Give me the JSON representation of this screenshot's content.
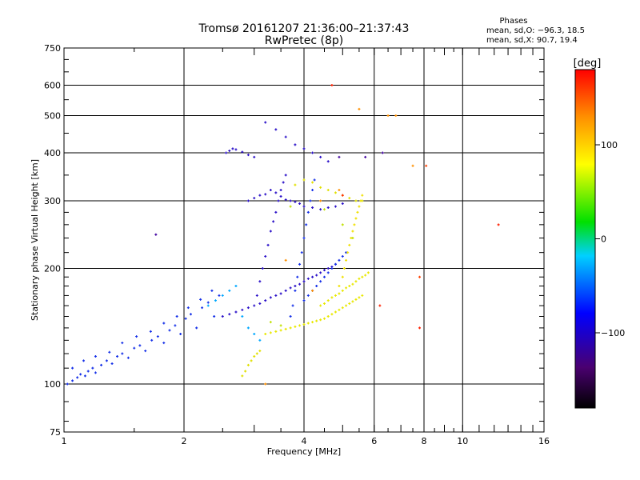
{
  "chart_data": {
    "type": "scatter",
    "title": "Tromsø 20161207 21:36:00–21:37:43",
    "subtitle": "RwPretec (8p)",
    "xlabel": "Frequency [MHz]",
    "ylabel": "Stationary phase Virtual Height [km]",
    "x_scale": "log",
    "y_scale": "log",
    "xlim": [
      1,
      16
    ],
    "ylim": [
      75,
      750
    ],
    "x_ticks": [
      {
        "value": 1,
        "label": "1"
      },
      {
        "value": 2,
        "label": "2"
      },
      {
        "value": 4,
        "label": "4"
      },
      {
        "value": 6,
        "label": "6"
      },
      {
        "value": 8,
        "label": "8"
      },
      {
        "value": 10,
        "label": "10"
      },
      {
        "value": 16,
        "label": "16"
      }
    ],
    "x_major_grid": [
      2,
      4,
      6,
      8,
      10
    ],
    "y_ticks": [
      {
        "value": 75,
        "label": "75"
      },
      {
        "value": 100,
        "label": "100"
      },
      {
        "value": 200,
        "label": "200"
      },
      {
        "value": 300,
        "label": "300"
      },
      {
        "value": 400,
        "label": "400"
      },
      {
        "value": 500,
        "label": "500"
      },
      {
        "value": 600,
        "label": "600"
      },
      {
        "value": 750,
        "label": "750"
      }
    ],
    "y_major_grid": [
      100,
      200,
      300,
      400,
      500,
      600
    ],
    "grid": true,
    "phases_box": {
      "title": "Phases",
      "line1": "mean, sd,O: −96.3, 18.5",
      "line2": "mean, sd,X:  90.7, 19.4"
    },
    "colorbar": {
      "label": "[deg]",
      "range": [
        -180,
        180
      ],
      "ticks": [
        {
          "value": 100,
          "label": "100"
        },
        {
          "value": 0,
          "label": "0"
        },
        {
          "value": -100,
          "label": "−100"
        }
      ],
      "colors": [
        "#000000",
        "#6a00a0",
        "#0000ff",
        "#00c8ff",
        "#00e000",
        "#ffff00",
        "#ff8000",
        "#ff0000"
      ]
    },
    "series": [
      {
        "phase": -100,
        "color": "#1530e8",
        "x": [
          1.02,
          1.05,
          1.08,
          1.1,
          1.13,
          1.15,
          1.18,
          1.2,
          1.24,
          1.28,
          1.32,
          1.36,
          1.4,
          1.45,
          1.5,
          1.55,
          1.6,
          1.66,
          1.72,
          1.78,
          1.84,
          1.9,
          1.96,
          2.02,
          2.08,
          2.15,
          2.22,
          2.3,
          2.38,
          2.45
        ],
        "y": [
          100,
          102,
          104,
          106,
          105,
          108,
          110,
          107,
          112,
          115,
          113,
          118,
          120,
          117,
          124,
          126,
          122,
          130,
          133,
          128,
          138,
          142,
          135,
          148,
          152,
          140,
          158,
          163,
          150,
          170
        ]
      },
      {
        "phase": -100,
        "color": "#1530e8",
        "x": [
          1.05,
          1.12,
          1.2,
          1.3,
          1.4,
          1.52,
          1.65,
          1.78,
          1.92,
          2.05,
          2.2,
          2.35
        ],
        "y": [
          110,
          115,
          118,
          121,
          128,
          133,
          137,
          144,
          150,
          158,
          166,
          175
        ]
      },
      {
        "phase": -110,
        "color": "#2a10c8",
        "x": [
          2.5,
          2.6,
          2.7,
          2.8,
          2.9,
          3.0,
          3.1,
          3.2,
          3.3,
          3.4,
          3.5,
          3.6,
          3.7,
          3.8,
          3.9,
          4.0,
          4.1,
          4.2,
          4.3,
          4.4,
          4.5,
          4.6,
          4.7,
          4.8
        ],
        "y": [
          150,
          152,
          154,
          156,
          158,
          160,
          162,
          165,
          168,
          170,
          172,
          175,
          178,
          180,
          182,
          185,
          188,
          190,
          192,
          195,
          198,
          200,
          202,
          205
        ]
      },
      {
        "phase": -105,
        "color": "#2a10c8",
        "x": [
          2.9,
          3.0,
          3.1,
          3.2,
          3.3,
          3.4,
          3.5,
          3.6,
          3.7,
          3.8,
          3.9,
          4.0,
          4.2,
          4.4,
          4.6,
          4.8,
          5.0
        ],
        "y": [
          300,
          305,
          310,
          312,
          320,
          315,
          308,
          302,
          300,
          298,
          295,
          290,
          288,
          285,
          288,
          290,
          295
        ]
      },
      {
        "phase": -110,
        "color": "#2a10c8",
        "x": [
          3.05,
          3.1,
          3.15,
          3.2,
          3.25,
          3.3,
          3.35,
          3.4,
          3.45,
          3.5,
          3.55,
          3.6
        ],
        "y": [
          170,
          185,
          200,
          215,
          230,
          250,
          265,
          280,
          300,
          320,
          335,
          350
        ]
      },
      {
        "phase": -100,
        "color": "#1530e8",
        "x": [
          3.7,
          3.75,
          3.8,
          3.85,
          3.9,
          3.95,
          4.0,
          4.05,
          4.1,
          4.15,
          4.2,
          4.25
        ],
        "y": [
          150,
          160,
          175,
          190,
          205,
          220,
          240,
          260,
          280,
          300,
          320,
          340
        ]
      },
      {
        "phase": -95,
        "color": "#1530e8",
        "x": [
          4.0,
          4.1,
          4.2,
          4.3,
          4.4,
          4.5,
          4.6,
          4.7,
          4.8,
          4.9,
          5.0,
          5.1
        ],
        "y": [
          165,
          170,
          175,
          180,
          185,
          190,
          195,
          200,
          205,
          210,
          215,
          220
        ]
      },
      {
        "phase": -110,
        "color": "#2a10c8",
        "x": [
          2.55,
          2.6,
          2.65,
          2.7,
          2.8,
          2.9,
          3.0
        ],
        "y": [
          400,
          405,
          410,
          408,
          402,
          395,
          390
        ]
      },
      {
        "phase": -110,
        "color": "#2a10c8",
        "x": [
          3.2,
          3.4,
          3.6,
          3.8,
          4.0,
          4.2,
          4.4,
          4.6
        ],
        "y": [
          480,
          460,
          440,
          420,
          410,
          400,
          390,
          380
        ]
      },
      {
        "phase": -60,
        "color": "#00a8ff",
        "x": [
          2.3,
          2.4,
          2.5,
          2.6,
          2.7,
          2.8,
          2.9,
          3.0,
          3.1
        ],
        "y": [
          160,
          165,
          170,
          175,
          180,
          150,
          140,
          135,
          130
        ]
      },
      {
        "phase": 100,
        "color": "#e0e000",
        "x": [
          2.8,
          2.85,
          2.9,
          2.95,
          3.0,
          3.05,
          3.1
        ],
        "y": [
          105,
          108,
          112,
          115,
          118,
          120,
          122
        ]
      },
      {
        "phase": 100,
        "color": "#e8e800",
        "x": [
          3.2,
          3.3,
          3.4,
          3.5,
          3.6,
          3.7,
          3.8,
          3.9,
          4.0,
          4.1,
          4.2,
          4.3,
          4.4,
          4.5,
          4.6,
          4.7,
          4.8,
          4.9,
          5.0,
          5.1,
          5.2,
          5.3,
          5.4,
          5.5,
          5.6
        ],
        "y": [
          135,
          136,
          137,
          138,
          139,
          140,
          141,
          142,
          143,
          144,
          145,
          146,
          147,
          148,
          150,
          152,
          154,
          156,
          158,
          160,
          162,
          164,
          166,
          168,
          170
        ]
      },
      {
        "phase": 100,
        "color": "#e8e800",
        "x": [
          4.4,
          4.5,
          4.6,
          4.7,
          4.8,
          4.9,
          5.0,
          5.1,
          5.2,
          5.3,
          5.4,
          5.5,
          5.6,
          5.7,
          5.8
        ],
        "y": [
          160,
          162,
          165,
          168,
          170,
          172,
          175,
          178,
          180,
          182,
          185,
          188,
          190,
          192,
          195
        ]
      },
      {
        "phase": 110,
        "color": "#f0e000",
        "x": [
          4.9,
          5.0,
          5.05,
          5.1,
          5.15,
          5.2,
          5.25,
          5.3,
          5.35,
          5.4,
          5.45,
          5.5,
          5.55,
          5.6
        ],
        "y": [
          180,
          190,
          200,
          210,
          220,
          230,
          240,
          250,
          260,
          270,
          280,
          290,
          300,
          310
        ]
      },
      {
        "phase": 100,
        "color": "#e0e000",
        "x": [
          3.8,
          4.0,
          4.2,
          4.4,
          4.6,
          4.8,
          5.0,
          5.2,
          5.4,
          5.6
        ],
        "y": [
          330,
          340,
          335,
          325,
          320,
          315,
          310,
          305,
          300,
          300
        ]
      },
      {
        "phase": 80,
        "color": "#c0e000",
        "x": [
          3.3,
          3.5,
          3.7,
          4.5,
          5.0,
          5.3
        ],
        "y": [
          145,
          142,
          290,
          285,
          260,
          240
        ]
      },
      {
        "phase": 120,
        "color": "#ff9000",
        "x": [
          3.2,
          3.6,
          4.2,
          4.4,
          4.9,
          5.5,
          6.5,
          6.8,
          7.5
        ],
        "y": [
          100,
          210,
          175,
          300,
          320,
          520,
          500,
          500,
          370
        ]
      },
      {
        "phase": 160,
        "color": "#ff2000",
        "x": [
          4.7,
          5.0,
          6.2,
          7.8,
          12.3
        ],
        "y": [
          600,
          310,
          160,
          140,
          260
        ]
      },
      {
        "phase": -140,
        "color": "#4000a0",
        "x": [
          4.9,
          5.7,
          6.3,
          1.7
        ],
        "y": [
          390,
          390,
          400,
          245
        ]
      },
      {
        "phase": 150,
        "color": "#ff4000",
        "x": [
          7.8,
          8.1
        ],
        "y": [
          190,
          370
        ]
      }
    ]
  }
}
